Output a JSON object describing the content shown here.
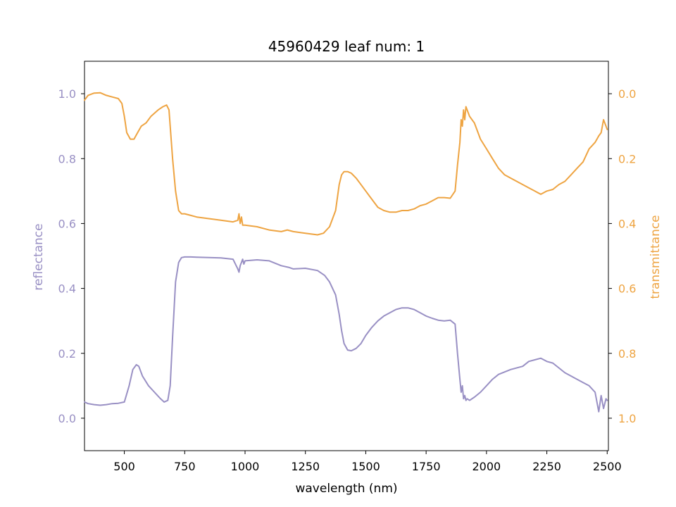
{
  "chart_data": {
    "type": "line",
    "title": "45960429 leaf num: 1",
    "xlabel": "wavelength (nm)",
    "xlim": [
      335,
      2505
    ],
    "x_ticks": [
      "500",
      "750",
      "1000",
      "1250",
      "1500",
      "1750",
      "2000",
      "2250",
      "2500"
    ],
    "left_axis": {
      "label": "reflectance",
      "ylim": [
        -0.1,
        1.1
      ],
      "ticks": [
        "0.0",
        "0.2",
        "0.4",
        "0.6",
        "0.8",
        "1.0"
      ],
      "color": "#9990c4"
    },
    "right_axis": {
      "label": "transmittance",
      "ylim": [
        1.1,
        -0.1
      ],
      "inverted": true,
      "ticks": [
        "0.0",
        "0.2",
        "0.4",
        "0.6",
        "0.8",
        "1.0"
      ],
      "color": "#eea442"
    },
    "grid": false,
    "series": [
      {
        "name": "reflectance",
        "axis": "left",
        "color": "#9990c4",
        "x": [
          335,
          350,
          375,
          400,
          425,
          450,
          475,
          500,
          520,
          535,
          550,
          560,
          575,
          600,
          625,
          650,
          665,
          680,
          690,
          700,
          712,
          725,
          737,
          750,
          775,
          800,
          850,
          900,
          950,
          970,
          975,
          980,
          985,
          990,
          995,
          1000,
          1050,
          1100,
          1150,
          1180,
          1200,
          1250,
          1300,
          1330,
          1350,
          1375,
          1390,
          1400,
          1410,
          1425,
          1440,
          1460,
          1480,
          1500,
          1525,
          1550,
          1575,
          1600,
          1625,
          1650,
          1675,
          1700,
          1725,
          1750,
          1775,
          1800,
          1825,
          1850,
          1870,
          1880,
          1890,
          1895,
          1900,
          1905,
          1910,
          1915,
          1920,
          1930,
          1950,
          1975,
          2000,
          2025,
          2050,
          2100,
          2150,
          2175,
          2200,
          2225,
          2250,
          2275,
          2300,
          2325,
          2350,
          2375,
          2400,
          2425,
          2450,
          2465,
          2475,
          2485,
          2495,
          2500
        ],
        "y": [
          0.05,
          0.045,
          0.042,
          0.04,
          0.042,
          0.045,
          0.046,
          0.05,
          0.1,
          0.15,
          0.165,
          0.16,
          0.13,
          0.1,
          0.08,
          0.06,
          0.05,
          0.055,
          0.1,
          0.25,
          0.42,
          0.48,
          0.495,
          0.497,
          0.497,
          0.496,
          0.495,
          0.494,
          0.49,
          0.46,
          0.45,
          0.47,
          0.48,
          0.49,
          0.475,
          0.485,
          0.488,
          0.485,
          0.47,
          0.465,
          0.46,
          0.462,
          0.455,
          0.44,
          0.42,
          0.38,
          0.32,
          0.27,
          0.23,
          0.21,
          0.208,
          0.215,
          0.23,
          0.255,
          0.28,
          0.3,
          0.315,
          0.325,
          0.335,
          0.34,
          0.34,
          0.335,
          0.325,
          0.315,
          0.308,
          0.302,
          0.3,
          0.302,
          0.29,
          0.2,
          0.12,
          0.08,
          0.1,
          0.06,
          0.07,
          0.055,
          0.06,
          0.055,
          0.065,
          0.08,
          0.1,
          0.12,
          0.135,
          0.15,
          0.16,
          0.175,
          0.18,
          0.185,
          0.175,
          0.17,
          0.155,
          0.14,
          0.13,
          0.12,
          0.11,
          0.1,
          0.08,
          0.02,
          0.07,
          0.03,
          0.06,
          0.055
        ]
      },
      {
        "name": "transmittance",
        "axis": "right",
        "color": "#eea442",
        "x": [
          335,
          350,
          375,
          400,
          425,
          450,
          475,
          490,
          500,
          510,
          525,
          540,
          555,
          570,
          590,
          610,
          640,
          660,
          675,
          685,
          690,
          700,
          712,
          725,
          737,
          750,
          775,
          800,
          850,
          900,
          950,
          970,
          975,
          980,
          985,
          990,
          1000,
          1050,
          1100,
          1150,
          1175,
          1200,
          1250,
          1300,
          1325,
          1350,
          1375,
          1390,
          1400,
          1410,
          1425,
          1440,
          1460,
          1475,
          1500,
          1525,
          1550,
          1575,
          1600,
          1625,
          1650,
          1675,
          1700,
          1725,
          1750,
          1775,
          1800,
          1825,
          1850,
          1870,
          1880,
          1890,
          1895,
          1900,
          1905,
          1910,
          1915,
          1920,
          1930,
          1950,
          1975,
          2000,
          2025,
          2050,
          2075,
          2100,
          2125,
          2150,
          2175,
          2200,
          2225,
          2250,
          2275,
          2300,
          2325,
          2350,
          2375,
          2400,
          2425,
          2450,
          2465,
          2475,
          2485,
          2495,
          2500
        ],
        "y": [
          0.02,
          0.005,
          -0.002,
          -0.003,
          0.005,
          0.01,
          0.015,
          0.03,
          0.07,
          0.12,
          0.14,
          0.14,
          0.12,
          0.1,
          0.09,
          0.07,
          0.05,
          0.04,
          0.035,
          0.05,
          0.1,
          0.2,
          0.3,
          0.36,
          0.37,
          0.37,
          0.375,
          0.38,
          0.385,
          0.39,
          0.395,
          0.39,
          0.37,
          0.4,
          0.38,
          0.405,
          0.405,
          0.41,
          0.42,
          0.425,
          0.42,
          0.425,
          0.43,
          0.435,
          0.43,
          0.41,
          0.36,
          0.28,
          0.25,
          0.24,
          0.24,
          0.245,
          0.26,
          0.275,
          0.3,
          0.325,
          0.35,
          0.36,
          0.365,
          0.365,
          0.36,
          0.36,
          0.355,
          0.345,
          0.34,
          0.33,
          0.32,
          0.32,
          0.322,
          0.3,
          0.22,
          0.15,
          0.08,
          0.1,
          0.05,
          0.08,
          0.04,
          0.05,
          0.07,
          0.09,
          0.14,
          0.17,
          0.2,
          0.23,
          0.25,
          0.26,
          0.27,
          0.28,
          0.29,
          0.3,
          0.31,
          0.3,
          0.295,
          0.28,
          0.27,
          0.25,
          0.23,
          0.21,
          0.17,
          0.15,
          0.13,
          0.12,
          0.08,
          0.1,
          0.11
        ]
      }
    ]
  }
}
